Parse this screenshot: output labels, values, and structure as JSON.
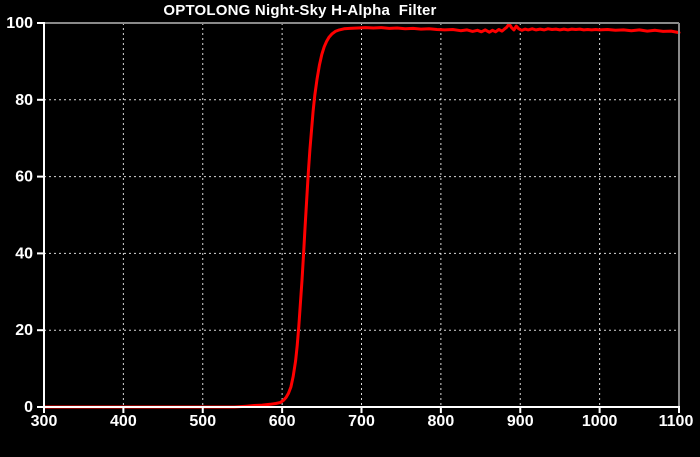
{
  "figure": {
    "title": "OPTOLONG Night-Sky H-Alpha  Filter"
  },
  "chart_data": {
    "type": "line",
    "title": "OPTOLONG Night-Sky H-Alpha  Filter",
    "xlabel": "",
    "ylabel": "",
    "xlim": [
      300,
      1100
    ],
    "ylim": [
      0,
      100
    ],
    "x_ticks": [
      300,
      400,
      500,
      600,
      700,
      800,
      900,
      1000,
      1100
    ],
    "y_ticks": [
      0,
      20,
      40,
      60,
      80,
      100
    ],
    "grid": "dashed",
    "legend": "none",
    "colors": {
      "background": "#000000",
      "curve": "#ff0000",
      "grid": "#ffffff",
      "axis": "#ffffff",
      "frame": "#8a8a8a",
      "text": "#ffffff"
    },
    "series": [
      {
        "name": "transmission_percent",
        "points": [
          [
            300,
            0
          ],
          [
            540,
            0
          ],
          [
            555,
            0.2
          ],
          [
            565,
            0.4
          ],
          [
            575,
            0.5
          ],
          [
            585,
            0.7
          ],
          [
            592,
            0.9
          ],
          [
            598,
            1.2
          ],
          [
            602,
            1.8
          ],
          [
            605,
            2.5
          ],
          [
            608,
            3.6
          ],
          [
            611,
            5.2
          ],
          [
            614,
            8
          ],
          [
            617,
            12
          ],
          [
            619,
            16
          ],
          [
            621,
            21
          ],
          [
            623,
            27
          ],
          [
            625,
            33
          ],
          [
            627,
            40
          ],
          [
            629,
            47
          ],
          [
            631,
            54
          ],
          [
            633,
            61
          ],
          [
            635,
            67
          ],
          [
            637,
            72
          ],
          [
            639,
            77
          ],
          [
            641,
            81
          ],
          [
            644,
            85.5
          ],
          [
            647,
            89
          ],
          [
            650,
            91.8
          ],
          [
            653,
            93.8
          ],
          [
            656,
            95.2
          ],
          [
            659,
            96.3
          ],
          [
            663,
            97.2
          ],
          [
            667,
            97.8
          ],
          [
            672,
            98.2
          ],
          [
            678,
            98.5
          ],
          [
            685,
            98.6
          ],
          [
            695,
            98.7
          ],
          [
            705,
            98.8
          ],
          [
            715,
            98.7
          ],
          [
            725,
            98.8
          ],
          [
            735,
            98.6
          ],
          [
            745,
            98.7
          ],
          [
            755,
            98.5
          ],
          [
            765,
            98.6
          ],
          [
            775,
            98.4
          ],
          [
            785,
            98.5
          ],
          [
            795,
            98.3
          ],
          [
            805,
            98.2
          ],
          [
            815,
            98.3
          ],
          [
            825,
            98.0
          ],
          [
            833,
            98.2
          ],
          [
            840,
            97.8
          ],
          [
            846,
            98.1
          ],
          [
            851,
            97.7
          ],
          [
            856,
            98.2
          ],
          [
            861,
            97.6
          ],
          [
            865,
            98.1
          ],
          [
            869,
            97.7
          ],
          [
            873,
            98.3
          ],
          [
            877,
            97.9
          ],
          [
            880,
            98.4
          ],
          [
            883,
            98.9
          ],
          [
            886,
            99.8
          ],
          [
            889,
            98.8
          ],
          [
            892,
            98.2
          ],
          [
            895,
            99.2
          ],
          [
            898,
            98.5
          ],
          [
            902,
            98.1
          ],
          [
            906,
            98.4
          ],
          [
            910,
            98.2
          ],
          [
            915,
            98.5
          ],
          [
            920,
            98.2
          ],
          [
            925,
            98.4
          ],
          [
            930,
            98.2
          ],
          [
            935,
            98.5
          ],
          [
            940,
            98.3
          ],
          [
            945,
            98.4
          ],
          [
            950,
            98.2
          ],
          [
            955,
            98.4
          ],
          [
            960,
            98.2
          ],
          [
            965,
            98.4
          ],
          [
            970,
            98.3
          ],
          [
            975,
            98.4
          ],
          [
            980,
            98.2
          ],
          [
            985,
            98.3
          ],
          [
            990,
            98.2
          ],
          [
            995,
            98.3
          ],
          [
            1000,
            98.2
          ],
          [
            1010,
            98.3
          ],
          [
            1020,
            98.1
          ],
          [
            1030,
            98.2
          ],
          [
            1040,
            98.0
          ],
          [
            1050,
            98.2
          ],
          [
            1060,
            97.9
          ],
          [
            1070,
            98.1
          ],
          [
            1080,
            97.8
          ],
          [
            1090,
            97.9
          ],
          [
            1100,
            97.5
          ]
        ]
      }
    ]
  }
}
